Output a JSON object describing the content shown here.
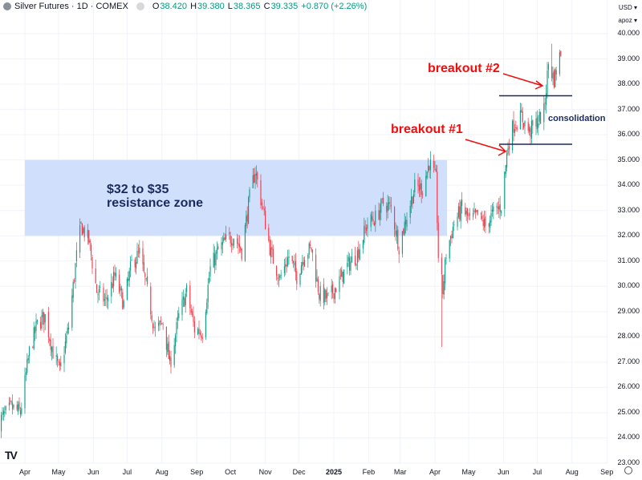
{
  "header": {
    "title": "Silver Futures · 1D · COMEX",
    "open_label": "O",
    "open": "38.420",
    "high_label": "H",
    "high": "39.380",
    "low_label": "L",
    "low": "38.365",
    "close_label": "C",
    "close": "39.335",
    "change": "+0.870 (+2.26%)"
  },
  "currency_select": "USD",
  "unit_select": "apoz",
  "annotations": {
    "zone": "$32 to $35\nresistance zone",
    "breakout1": "breakout #1",
    "breakout2": "breakout #2",
    "consolidation": "consolidation"
  },
  "colors": {
    "up": "#089981",
    "down": "#f23645",
    "zone": "#c8dbfc",
    "annotation_red": "#f20d0d",
    "annotation_navy": "#1a2a5e"
  },
  "chart_data": {
    "type": "candlestick",
    "title": "Silver Futures · 1D · COMEX",
    "ylim": [
      23,
      40
    ],
    "y_ticks": [
      "40.000",
      "39.000",
      "38.000",
      "37.000",
      "36.000",
      "35.000",
      "34.000",
      "33.000",
      "32.000",
      "31.000",
      "30.000",
      "29.000",
      "28.000",
      "27.000",
      "26.000",
      "25.000",
      "24.000",
      "23.000"
    ],
    "x_ticks": [
      {
        "label": "Apr",
        "date": "2024-04-01"
      },
      {
        "label": "May",
        "date": "2024-05-01"
      },
      {
        "label": "Jun",
        "date": "2024-06-01"
      },
      {
        "label": "Jul",
        "date": "2024-07-01"
      },
      {
        "label": "Aug",
        "date": "2024-08-01"
      },
      {
        "label": "Sep",
        "date": "2024-09-01"
      },
      {
        "label": "Oct",
        "date": "2024-10-01"
      },
      {
        "label": "Nov",
        "date": "2024-11-01"
      },
      {
        "label": "Dec",
        "date": "2024-12-01"
      },
      {
        "label": "2025",
        "date": "2025-01-01"
      },
      {
        "label": "Feb",
        "date": "2025-02-01"
      },
      {
        "label": "Mar",
        "date": "2025-03-01"
      },
      {
        "label": "Apr",
        "date": "2025-04-01"
      },
      {
        "label": "May",
        "date": "2025-05-01"
      },
      {
        "label": "Jun",
        "date": "2025-06-01"
      },
      {
        "label": "Jul",
        "date": "2025-07-01"
      },
      {
        "label": "Aug",
        "date": "2025-08-01"
      },
      {
        "label": "Sep",
        "date": "2025-09-01"
      }
    ],
    "approx_closes": [
      [
        "2024-03-08",
        24.6
      ],
      [
        "2024-03-20",
        25.2
      ],
      [
        "2024-03-28",
        25.0
      ],
      [
        "2024-04-05",
        27.4
      ],
      [
        "2024-04-12",
        28.5
      ],
      [
        "2024-04-19",
        28.8
      ],
      [
        "2024-04-26",
        27.4
      ],
      [
        "2024-05-02",
        26.6
      ],
      [
        "2024-05-10",
        28.4
      ],
      [
        "2024-05-17",
        31.2
      ],
      [
        "2024-05-21",
        32.4
      ],
      [
        "2024-05-28",
        31.8
      ],
      [
        "2024-06-04",
        29.8
      ],
      [
        "2024-06-12",
        29.4
      ],
      [
        "2024-06-20",
        30.4
      ],
      [
        "2024-06-28",
        29.3
      ],
      [
        "2024-07-05",
        30.9
      ],
      [
        "2024-07-12",
        31.3
      ],
      [
        "2024-07-18",
        30.0
      ],
      [
        "2024-07-26",
        28.2
      ],
      [
        "2024-08-02",
        28.6
      ],
      [
        "2024-08-08",
        26.9
      ],
      [
        "2024-08-16",
        28.8
      ],
      [
        "2024-08-23",
        29.8
      ],
      [
        "2024-08-30",
        28.3
      ],
      [
        "2024-09-06",
        28.2
      ],
      [
        "2024-09-13",
        30.7
      ],
      [
        "2024-09-20",
        31.4
      ],
      [
        "2024-09-27",
        31.8
      ],
      [
        "2024-10-04",
        32.0
      ],
      [
        "2024-10-11",
        31.4
      ],
      [
        "2024-10-18",
        33.5
      ],
      [
        "2024-10-23",
        34.6
      ],
      [
        "2024-10-30",
        33.0
      ],
      [
        "2024-11-06",
        31.3
      ],
      [
        "2024-11-14",
        30.3
      ],
      [
        "2024-11-22",
        31.2
      ],
      [
        "2024-11-29",
        30.4
      ],
      [
        "2024-12-06",
        31.3
      ],
      [
        "2024-12-12",
        31.5
      ],
      [
        "2024-12-19",
        29.7
      ],
      [
        "2024-12-27",
        29.5
      ],
      [
        "2025-01-06",
        30.2
      ],
      [
        "2025-01-13",
        30.8
      ],
      [
        "2025-01-22",
        31.3
      ],
      [
        "2025-01-31",
        32.5
      ],
      [
        "2025-02-07",
        32.7
      ],
      [
        "2025-02-14",
        33.3
      ],
      [
        "2025-02-21",
        33.1
      ],
      [
        "2025-02-28",
        31.6
      ],
      [
        "2025-03-07",
        32.8
      ],
      [
        "2025-03-14",
        33.9
      ],
      [
        "2025-03-21",
        33.9
      ],
      [
        "2025-03-27",
        34.9
      ],
      [
        "2025-04-02",
        34.2
      ],
      [
        "2025-04-04",
        31.2
      ],
      [
        "2025-04-08",
        29.8
      ],
      [
        "2025-04-11",
        31.3
      ],
      [
        "2025-04-18",
        32.5
      ],
      [
        "2025-04-25",
        33.1
      ],
      [
        "2025-05-02",
        32.6
      ],
      [
        "2025-05-09",
        32.8
      ],
      [
        "2025-05-16",
        32.4
      ],
      [
        "2025-05-23",
        32.9
      ],
      [
        "2025-05-30",
        33.2
      ],
      [
        "2025-06-05",
        35.6
      ],
      [
        "2025-06-10",
        36.4
      ],
      [
        "2025-06-17",
        36.7
      ],
      [
        "2025-06-24",
        36.1
      ],
      [
        "2025-07-01",
        36.5
      ],
      [
        "2025-07-07",
        36.9
      ],
      [
        "2025-07-11",
        38.8
      ],
      [
        "2025-07-16",
        38.2
      ],
      [
        "2025-07-22",
        39.3
      ]
    ]
  }
}
